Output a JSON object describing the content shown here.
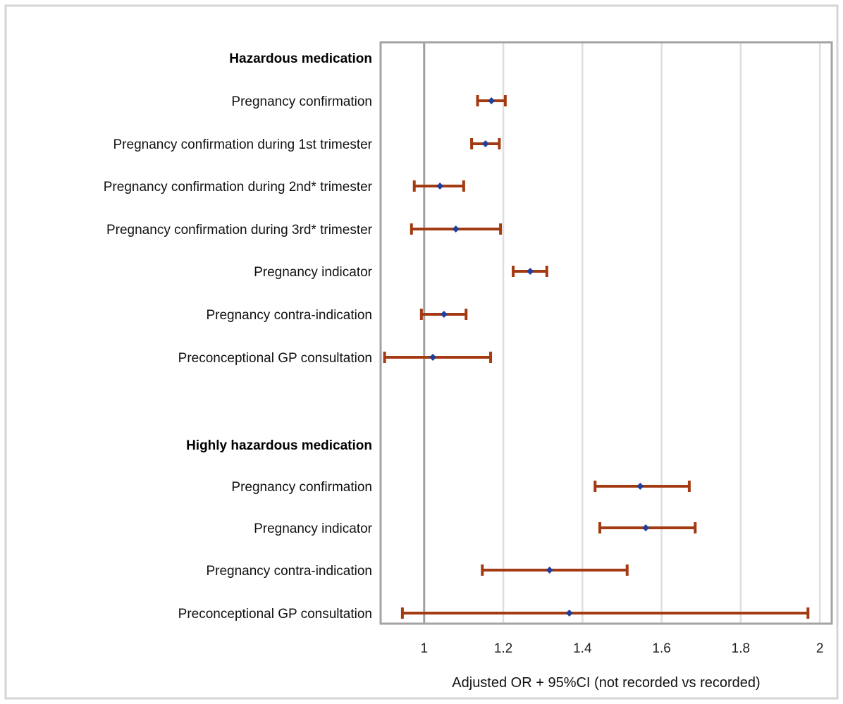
{
  "chart_data": {
    "type": "forest",
    "xlabel": "Adjusted OR + 95%CI (not recorded vs recorded)",
    "xlim": [
      0.89,
      2.03
    ],
    "xticks": [
      {
        "value": 1,
        "label": "1"
      },
      {
        "value": 1.2,
        "label": "1.2"
      },
      {
        "value": 1.4,
        "label": "1.4"
      },
      {
        "value": 1.6,
        "label": "1.6"
      },
      {
        "value": 1.8,
        "label": "1.8"
      },
      {
        "value": 2,
        "label": "2"
      }
    ],
    "reference_value": 1,
    "grid": true,
    "groups": [
      {
        "label": "Hazardous medication",
        "rows": [
          {
            "label": "Pregnancy confirmation",
            "or": 1.17,
            "lower": 1.135,
            "upper": 1.205
          },
          {
            "label": "Pregnancy confirmation during 1st trimester",
            "or": 1.155,
            "lower": 1.12,
            "upper": 1.19
          },
          {
            "label": "Pregnancy confirmation during 2nd* trimester",
            "or": 1.04,
            "lower": 0.975,
            "upper": 1.1
          },
          {
            "label": "Pregnancy confirmation during 3rd* trimester",
            "or": 1.08,
            "lower": 0.968,
            "upper": 1.193
          },
          {
            "label": "Pregnancy indicator",
            "or": 1.268,
            "lower": 1.225,
            "upper": 1.31
          },
          {
            "label": "Pregnancy contra-indication",
            "or": 1.05,
            "lower": 0.993,
            "upper": 1.106
          },
          {
            "label": "Preconceptional GP consultation",
            "or": 1.022,
            "lower": 0.9,
            "upper": 1.168
          }
        ]
      },
      {
        "label": "Highly hazardous medication",
        "rows": [
          {
            "label": "Pregnancy confirmation",
            "or": 1.546,
            "lower": 1.432,
            "upper": 1.67
          },
          {
            "label": "Pregnancy indicator",
            "or": 1.56,
            "lower": 1.444,
            "upper": 1.685
          },
          {
            "label": "Pregnancy contra-indication",
            "or": 1.317,
            "lower": 1.147,
            "upper": 1.513
          },
          {
            "label": "Preconceptional GP consultation",
            "or": 1.367,
            "lower": 0.945,
            "upper": 1.97
          }
        ]
      }
    ],
    "colors": {
      "ci": "#a33a12",
      "point": "#1f3f9a",
      "reference": "#a0a0a0",
      "grid": "#dedede",
      "frame": "#a3a3a3"
    }
  }
}
